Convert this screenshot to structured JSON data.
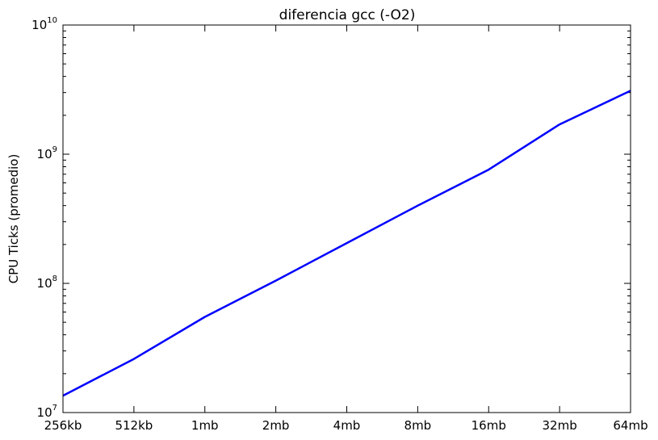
{
  "chart_data": {
    "type": "line",
    "title": "diferencia gcc (-O2)",
    "xlabel": "",
    "ylabel": "CPU Ticks (promedio)",
    "yscale": "log",
    "ylim": [
      10000000,
      10000000000
    ],
    "categories": [
      "256kb",
      "512kb",
      "1mb",
      "2mb",
      "4mb",
      "8mb",
      "16mb",
      "32mb",
      "64mb"
    ],
    "y_ticks": [
      {
        "base": "10",
        "exp": "7",
        "value": 10000000
      },
      {
        "base": "10",
        "exp": "8",
        "value": 100000000
      },
      {
        "base": "10",
        "exp": "9",
        "value": 1000000000
      },
      {
        "base": "10",
        "exp": "10",
        "value": 10000000000
      }
    ],
    "series": [
      {
        "values": [
          13500000,
          26000000,
          55000000,
          105000000,
          205000000,
          400000000,
          760000000,
          1700000000,
          3100000000
        ],
        "color": "#0000ff"
      }
    ],
    "grid": false,
    "legend": "none"
  }
}
